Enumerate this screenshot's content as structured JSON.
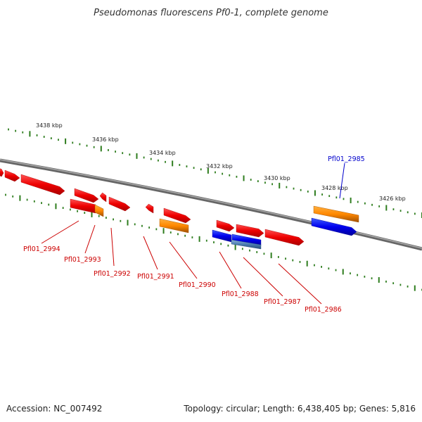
{
  "title": "Pseudomonas fluorescens Pf0-1, complete genome",
  "footer": {
    "accession": "Accession: NC_007492",
    "summary": "Topology: circular; Length: 6,438,405 bp; Genes: 5,816"
  },
  "colors": {
    "backbone": "#7a7a7a",
    "tick": "#2e7d1e",
    "label_red": "#cc0000",
    "label_blue": "#0000cc"
  },
  "scale_labels": [
    "3438 kbp",
    "3436 kbp",
    "3434 kbp",
    "3432 kbp",
    "3430 kbp",
    "3428 kbp",
    "3426 kbp"
  ],
  "gene_labels": [
    {
      "text": "Pfl01_2985",
      "color": "#0000cc"
    },
    {
      "text": "Pfl01_2994",
      "color": "#cc0000"
    },
    {
      "text": "Pfl01_2993",
      "color": "#cc0000"
    },
    {
      "text": "Pfl01_2992",
      "color": "#cc0000"
    },
    {
      "text": "Pfl01_2991",
      "color": "#cc0000"
    },
    {
      "text": "Pfl01_2990",
      "color": "#cc0000"
    },
    {
      "text": "Pfl01_2988",
      "color": "#cc0000"
    },
    {
      "text": "Pfl01_2987",
      "color": "#cc0000"
    },
    {
      "text": "Pfl01_2986",
      "color": "#cc0000"
    }
  ],
  "features": [
    {
      "name": "gene-feature",
      "color": "red"
    },
    {
      "name": "gene-feature",
      "color": "red"
    },
    {
      "name": "gene-feature",
      "color": "red"
    },
    {
      "name": "gene-feature",
      "color": "red"
    },
    {
      "name": "gene-feature",
      "color": "red"
    },
    {
      "name": "gene-feature",
      "color": "red"
    },
    {
      "name": "gene-feature",
      "color": "red"
    },
    {
      "name": "gene-feature",
      "color": "red"
    },
    {
      "name": "gene-feature",
      "color": "red"
    },
    {
      "name": "gene-feature",
      "color": "red"
    },
    {
      "name": "gene-feature",
      "color": "red"
    },
    {
      "name": "gene-feature",
      "color": "red"
    },
    {
      "name": "gene-feature",
      "color": "khaki"
    },
    {
      "name": "gene-feature",
      "color": "orange"
    },
    {
      "name": "gene-feature",
      "color": "orange"
    },
    {
      "name": "gene-feature",
      "color": "orange"
    },
    {
      "name": "gene-feature",
      "color": "blue"
    },
    {
      "name": "gene-feature",
      "color": "blue"
    },
    {
      "name": "gene-feature",
      "color": "blue"
    },
    {
      "name": "gene-feature",
      "color": "steelblue"
    }
  ]
}
